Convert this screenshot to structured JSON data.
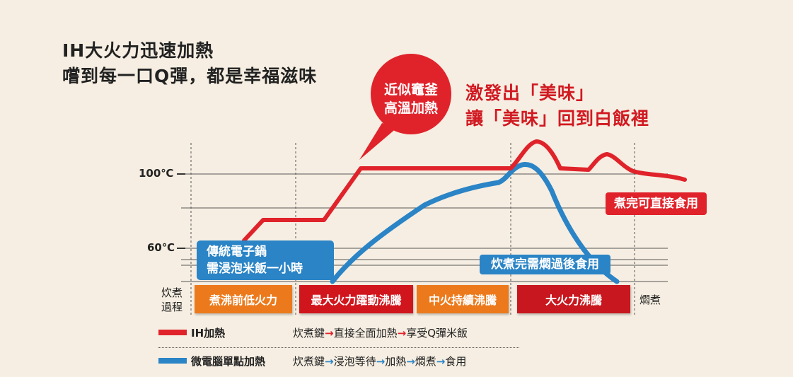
{
  "heading": {
    "line1": "IH大火力迅速加熱",
    "line2": "嚐到每一口Q彈，都是幸福滋味"
  },
  "callouts": {
    "bubble_line1": "近似竈釜",
    "bubble_line2": "高溫加熱",
    "tagline1": "激發出「美味」",
    "tagline2": "讓「美味」回到白飯裡",
    "ih_end": "煮完可直接食用",
    "trad_note_line1": "傳統電子鍋",
    "trad_note_line2": "需浸泡米飯一小時",
    "micro_end": "炊煮完需燜過後食用"
  },
  "colors": {
    "ih": "#e0232b",
    "micro": "#2a84c6",
    "orange": "#ec7a1c",
    "red_dark": "#c8171e"
  },
  "chart_data": {
    "type": "line",
    "title": "",
    "xlabel": "",
    "ylabel": "",
    "y_ticks": [
      "100℃",
      "60℃"
    ],
    "stage_label_line1": "炊煮",
    "stage_label_line2": "過程",
    "stages": [
      "煮沸前低火力",
      "最大火力躍動沸騰",
      "中火持續沸騰",
      "大火力沸騰",
      "燜煮"
    ],
    "series": [
      {
        "name": "IH加熱"
      },
      {
        "name": "微電腦單點加熱"
      }
    ]
  },
  "legend": {
    "ih_label": "IH加熱",
    "ih_steps": [
      "炊煮鍵",
      "直接全面加熱",
      "享受Q彈米飯"
    ],
    "micro_label": "微電腦單點加熱",
    "micro_steps": [
      "炊煮鍵",
      "浸泡等待",
      "加熱",
      "燜煮",
      "食用"
    ]
  }
}
